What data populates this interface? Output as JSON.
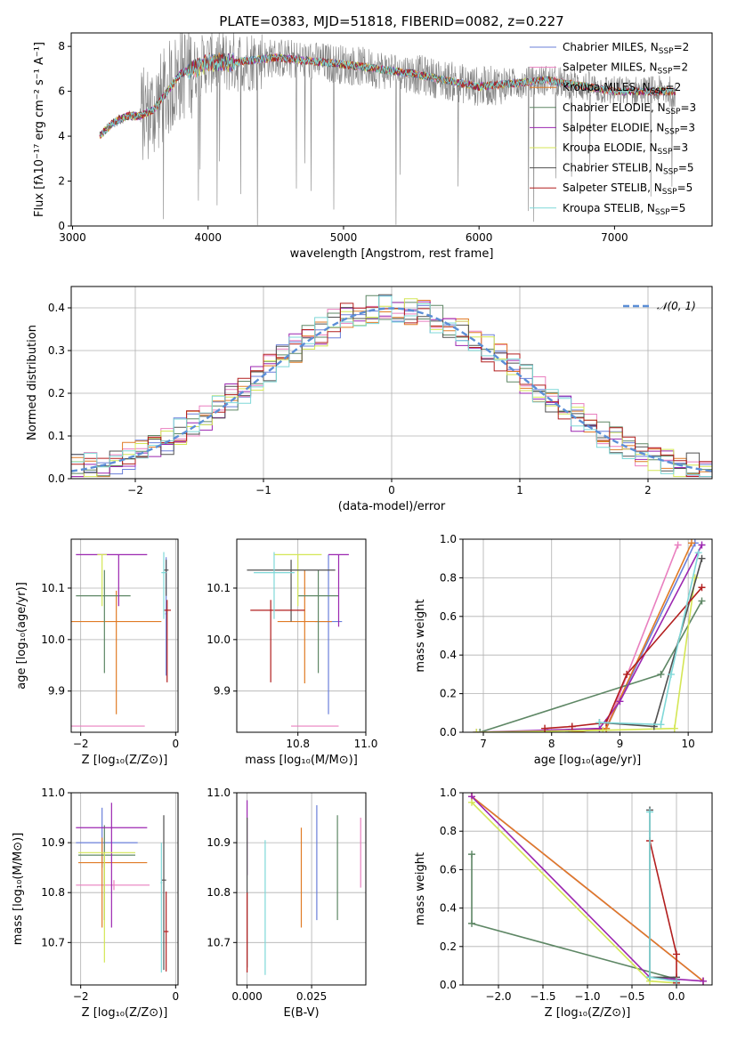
{
  "figure": {
    "title": "PLATE=0383, MJD=51818, FIBERID=0082, z=0.227"
  },
  "models": [
    {
      "name": "Chabrier MILES",
      "nssp": "2",
      "color": "#6a7fd9"
    },
    {
      "name": "Salpeter MILES",
      "nssp": "2",
      "color": "#e97fbf"
    },
    {
      "name": "Kroupa MILES",
      "nssp": "2",
      "color": "#e07b25"
    },
    {
      "name": "Chabrier ELODIE",
      "nssp": "3",
      "color": "#5e8765"
    },
    {
      "name": "Salpeter ELODIE",
      "nssp": "3",
      "color": "#9b26b0"
    },
    {
      "name": "Kroupa ELODIE",
      "nssp": "3",
      "color": "#d4e655"
    },
    {
      "name": "Chabrier STELIB",
      "nssp": "5",
      "color": "#505050"
    },
    {
      "name": "Salpeter STELIB",
      "nssp": "5",
      "color": "#b21e1e"
    },
    {
      "name": "Kroupa STELIB",
      "nssp": "5",
      "color": "#7fd8d8"
    }
  ],
  "chart_data": [
    {
      "id": "spectrum",
      "type": "line",
      "title": "PLATE=0383, MJD=51818, FIBERID=0082, z=0.227",
      "xlabel": "wavelength [Angstrom, rest frame]",
      "ylabel": "Flux [fλ10⁻¹⁷ erg cm⁻² s⁻¹ A⁻¹]",
      "xlim": [
        2990,
        7720
      ],
      "ylim": [
        0,
        8.6
      ],
      "xticks": [
        3000,
        4000,
        5000,
        6000,
        7000
      ],
      "yticks": [
        0,
        2,
        4,
        6,
        8
      ],
      "legend": "upper right",
      "data_color": "#808080",
      "model_anchor_x": [
        3200,
        3300,
        3400,
        3500,
        3600,
        3700,
        3800,
        3900,
        4000,
        4200,
        4500,
        5000,
        5500,
        6000,
        6500,
        7000,
        7400
      ],
      "model_anchor_y": [
        4.0,
        4.6,
        4.9,
        4.9,
        5.2,
        6.0,
        6.8,
        7.0,
        7.3,
        7.3,
        7.5,
        7.2,
        6.8,
        6.2,
        6.5,
        6.0,
        6.0
      ]
    },
    {
      "id": "residuals",
      "type": "histogram",
      "xlabel": "(data-model)/error",
      "ylabel": "Normed distribution",
      "xlim": [
        -2.5,
        2.5
      ],
      "ylim": [
        0,
        0.45
      ],
      "xticks": [
        -2,
        -1,
        0,
        1,
        2
      ],
      "yticks": [
        0.0,
        0.1,
        0.2,
        0.3,
        0.4
      ],
      "legend": "upper right",
      "reference_label": "𝒩(0, 1)",
      "reference_color": "#5b8ed6",
      "bin_edges_start": -2.5,
      "bin_width": 0.1
    },
    {
      "id": "age_vs_Z",
      "type": "errorbar",
      "xlabel": "Z [log₁₀(Z/Z⊙)]",
      "ylabel": "age  [log₁₀(age/yr)]",
      "xlim": [
        -2.2,
        0.05
      ],
      "ylim": [
        9.82,
        10.195
      ],
      "xticks": [
        -2,
        0
      ],
      "yticks": [
        9.9,
        10.0,
        10.1
      ],
      "points": [
        {
          "model": 0,
          "x": -0.2,
          "y": 10.05,
          "xerr": [
            0.02,
            0.02
          ],
          "yerr": [
            0.12,
            0.11
          ]
        },
        {
          "model": 1,
          "x": -1.35,
          "y": 9.832,
          "xerr": [
            0.85,
            0.7
          ],
          "yerr": [
            0.0,
            0.0
          ]
        },
        {
          "model": 2,
          "x": -1.25,
          "y": 10.035,
          "xerr": [
            0.95,
            0.95
          ],
          "yerr": [
            0.18,
            0.06
          ]
        },
        {
          "model": 3,
          "x": -1.5,
          "y": 10.085,
          "xerr": [
            0.6,
            0.55
          ],
          "yerr": [
            0.15,
            0.05
          ]
        },
        {
          "model": 4,
          "x": -1.2,
          "y": 10.165,
          "xerr": [
            0.9,
            0.6
          ],
          "yerr": [
            0.1,
            0.0
          ]
        },
        {
          "model": 5,
          "x": -1.55,
          "y": 10.165,
          "xerr": [
            0.1,
            0.1
          ],
          "yerr": [
            0.1,
            0.0
          ]
        },
        {
          "model": 6,
          "x": -0.2,
          "y": 10.135,
          "xerr": [
            0.05,
            0.05
          ],
          "yerr": [
            0.05,
            0.02
          ]
        },
        {
          "model": 7,
          "x": -0.18,
          "y": 10.057,
          "xerr": [
            0.08,
            0.08
          ],
          "yerr": [
            0.14,
            0.02
          ]
        },
        {
          "model": 8,
          "x": -0.25,
          "y": 10.13,
          "xerr": [
            0.05,
            0.05
          ],
          "yerr": [
            0.09,
            0.04
          ]
        }
      ]
    },
    {
      "id": "age_vs_mass",
      "type": "errorbar",
      "xlabel": "mass [log₁₀(M/M⊙)]",
      "xlim": [
        10.62,
        11.0
      ],
      "ylim": [
        9.82,
        10.195
      ],
      "xticks": [
        10.8,
        11.0
      ],
      "yticks": [
        9.9,
        10.0,
        10.1
      ],
      "points": [
        {
          "model": 0,
          "x": 10.89,
          "y": 10.035,
          "xerr": [
            0.04,
            0.04
          ],
          "yerr": [
            0.18,
            0.13
          ]
        },
        {
          "model": 1,
          "x": 10.85,
          "y": 9.832,
          "xerr": [
            0.07,
            0.07
          ],
          "yerr": [
            0.0,
            0.0
          ]
        },
        {
          "model": 2,
          "x": 10.82,
          "y": 10.035,
          "xerr": [
            0.08,
            0.08
          ],
          "yerr": [
            0.12,
            0.1
          ]
        },
        {
          "model": 3,
          "x": 10.86,
          "y": 10.085,
          "xerr": [
            0.06,
            0.06
          ],
          "yerr": [
            0.15,
            0.05
          ]
        },
        {
          "model": 4,
          "x": 10.92,
          "y": 10.165,
          "xerr": [
            0.03,
            0.03
          ],
          "yerr": [
            0.14,
            0.0
          ]
        },
        {
          "model": 5,
          "x": 10.8,
          "y": 10.165,
          "xerr": [
            0.07,
            0.07
          ],
          "yerr": [
            0.1,
            0.0
          ]
        },
        {
          "model": 6,
          "x": 10.78,
          "y": 10.135,
          "xerr": [
            0.13,
            0.13
          ],
          "yerr": [
            0.1,
            0.02
          ]
        },
        {
          "model": 7,
          "x": 10.72,
          "y": 10.057,
          "xerr": [
            0.06,
            0.1
          ],
          "yerr": [
            0.14,
            0.02
          ]
        },
        {
          "model": 8,
          "x": 10.73,
          "y": 10.13,
          "xerr": [
            0.06,
            0.06
          ],
          "yerr": [
            0.09,
            0.04
          ]
        }
      ]
    },
    {
      "id": "cumulative_age",
      "type": "line",
      "xlabel": "age  [log₁₀(age/yr)]",
      "ylabel": "mass weight",
      "xlim": [
        6.7,
        10.35
      ],
      "ylim": [
        0,
        1
      ],
      "xticks": [
        7,
        8,
        9,
        10
      ],
      "yticks": [
        0.0,
        0.2,
        0.4,
        0.6,
        0.8,
        1.0
      ],
      "series": [
        {
          "model": 0,
          "x": [
            8.25,
            8.8,
            10.1
          ],
          "y": [
            0.0,
            0.02,
            0.98
          ]
        },
        {
          "model": 1,
          "x": [
            8.3,
            8.8,
            9.85
          ],
          "y": [
            0.0,
            0.02,
            0.97
          ]
        },
        {
          "model": 2,
          "x": [
            8.3,
            8.8,
            10.05
          ],
          "y": [
            0.0,
            0.02,
            0.98
          ]
        },
        {
          "model": 3,
          "x": [
            6.95,
            9.6,
            10.2
          ],
          "y": [
            0.0,
            0.3,
            0.68
          ]
        },
        {
          "model": 4,
          "x": [
            6.9,
            8.7,
            9.0,
            10.2
          ],
          "y": [
            0.0,
            0.02,
            0.16,
            0.97
          ]
        },
        {
          "model": 5,
          "x": [
            6.9,
            8.75,
            9.8,
            10.1
          ],
          "y": [
            0.0,
            0.01,
            0.02,
            0.8
          ]
        },
        {
          "model": 6,
          "x": [
            8.7,
            9.5,
            10.2
          ],
          "y": [
            0.05,
            0.03,
            0.9
          ]
        },
        {
          "model": 7,
          "x": [
            7.9,
            8.3,
            8.8,
            9.1,
            10.2
          ],
          "y": [
            0.02,
            0.03,
            0.05,
            0.3,
            0.75
          ]
        },
        {
          "model": 8,
          "x": [
            8.7,
            9.6,
            9.75,
            10.15
          ],
          "y": [
            0.05,
            0.04,
            0.3,
            0.93
          ]
        }
      ]
    },
    {
      "id": "mass_vs_Z",
      "type": "errorbar",
      "xlabel": "Z [log₁₀(Z/Z⊙)]",
      "ylabel": "mass [log₁₀(M/M⊙)]",
      "xlim": [
        -2.2,
        0.05
      ],
      "ylim": [
        10.615,
        11.0
      ],
      "xticks": [
        -2,
        0
      ],
      "yticks": [
        10.7,
        10.8,
        10.9,
        11.0
      ],
      "points": [
        {
          "model": 0,
          "x": -1.55,
          "y": 10.9,
          "xerr": [
            0.55,
            0.75
          ],
          "yerr": [
            0.05,
            0.07
          ]
        },
        {
          "model": 1,
          "x": -1.3,
          "y": 10.815,
          "xerr": [
            0.8,
            0.75
          ],
          "yerr": [
            0.01,
            0.01
          ]
        },
        {
          "model": 2,
          "x": -1.55,
          "y": 10.86,
          "xerr": [
            0.5,
            0.95
          ],
          "yerr": [
            0.13,
            0.05
          ]
        },
        {
          "model": 3,
          "x": -1.5,
          "y": 10.875,
          "xerr": [
            0.55,
            0.65
          ],
          "yerr": [
            0.13,
            0.06
          ]
        },
        {
          "model": 4,
          "x": -1.35,
          "y": 10.93,
          "xerr": [
            0.75,
            0.75
          ],
          "yerr": [
            0.2,
            0.05
          ]
        },
        {
          "model": 5,
          "x": -1.5,
          "y": 10.88,
          "xerr": [
            0.55,
            0.65
          ],
          "yerr": [
            0.22,
            0.0
          ]
        },
        {
          "model": 6,
          "x": -0.25,
          "y": 10.825,
          "xerr": [
            0.05,
            0.05
          ],
          "yerr": [
            0.18,
            0.13
          ]
        },
        {
          "model": 7,
          "x": -0.2,
          "y": 10.722,
          "xerr": [
            0.05,
            0.05
          ],
          "yerr": [
            0.08,
            0.08
          ]
        },
        {
          "model": 8,
          "x": -0.3,
          "y": 10.82,
          "xerr": [
            0.02,
            0.02
          ],
          "yerr": [
            0.18,
            0.08
          ]
        }
      ]
    },
    {
      "id": "mass_vs_ebv",
      "type": "errorbar",
      "xlabel": "E(B-V)",
      "xlim": [
        -0.004,
        0.046
      ],
      "ylim": [
        10.615,
        11.0
      ],
      "xticks": [
        0.0,
        0.025
      ],
      "yticks": [
        10.7,
        10.8,
        10.9,
        11.0
      ],
      "points": [
        {
          "model": 0,
          "x": 0.027,
          "y": 10.86,
          "xerr": [
            0,
            0
          ],
          "yerr": [
            0.115,
            0.115
          ]
        },
        {
          "model": 1,
          "x": 0.044,
          "y": 10.88,
          "xerr": [
            0,
            0
          ],
          "yerr": [
            0.07,
            0.07
          ]
        },
        {
          "model": 2,
          "x": 0.021,
          "y": 10.83,
          "xerr": [
            0,
            0
          ],
          "yerr": [
            0.1,
            0.1
          ]
        },
        {
          "model": 3,
          "x": 0.035,
          "y": 10.85,
          "xerr": [
            0,
            0
          ],
          "yerr": [
            0.105,
            0.105
          ]
        },
        {
          "model": 4,
          "x": 0.0,
          "y": 10.91,
          "xerr": [
            0,
            0
          ],
          "yerr": [
            0.075,
            0.075
          ]
        },
        {
          "model": 6,
          "x": 0.0,
          "y": 10.8,
          "xerr": [
            0,
            0
          ],
          "yerr": [
            0.15,
            0.15
          ]
        },
        {
          "model": 7,
          "x": 0.0,
          "y": 10.72,
          "xerr": [
            0,
            0
          ],
          "yerr": [
            0.08,
            0.08
          ]
        },
        {
          "model": 8,
          "x": 0.007,
          "y": 10.77,
          "xerr": [
            0,
            0
          ],
          "yerr": [
            0.135,
            0.135
          ]
        }
      ]
    },
    {
      "id": "cumulative_Z",
      "type": "line",
      "xlabel": "Z [log₁₀(Z/Z⊙)]",
      "ylabel": "mass weight",
      "xlim": [
        -2.4,
        0.4
      ],
      "ylim": [
        0,
        1
      ],
      "xticks": [
        -2.0,
        -1.5,
        -1.0,
        -0.5,
        0.0
      ],
      "yticks": [
        0.0,
        0.2,
        0.4,
        0.6,
        0.8,
        1.0
      ],
      "series": [
        {
          "model": 0,
          "x": [
            -2.3,
            0.3
          ],
          "y": [
            0.98,
            0.02
          ]
        },
        {
          "model": 1,
          "x": [
            -2.3,
            0.3
          ],
          "y": [
            0.98,
            0.02
          ]
        },
        {
          "model": 2,
          "x": [
            -2.3,
            0.3
          ],
          "y": [
            0.98,
            0.02
          ]
        },
        {
          "model": 3,
          "x": [
            -2.3,
            -2.3,
            0.0,
            0.0
          ],
          "y": [
            0.68,
            0.32,
            0.03,
            0.01
          ]
        },
        {
          "model": 4,
          "x": [
            -2.3,
            -0.3,
            0.3
          ],
          "y": [
            0.98,
            0.04,
            0.02
          ]
        },
        {
          "model": 5,
          "x": [
            -2.3,
            -0.3,
            0.0
          ],
          "y": [
            0.95,
            0.02,
            0.01
          ]
        },
        {
          "model": 6,
          "x": [
            -0.3,
            -0.3,
            0.0,
            0.0
          ],
          "y": [
            0.91,
            0.04,
            0.04,
            0.02
          ]
        },
        {
          "model": 7,
          "x": [
            -0.3,
            0.0,
            0.0
          ],
          "y": [
            0.75,
            0.16,
            0.01
          ]
        },
        {
          "model": 8,
          "x": [
            -0.3,
            -0.3,
            0.0
          ],
          "y": [
            0.9,
            0.04,
            0.02
          ]
        }
      ]
    }
  ]
}
